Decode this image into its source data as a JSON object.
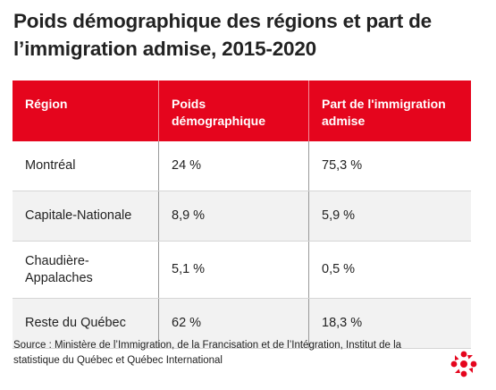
{
  "title": "Poids démographique des régions et part de l’immigration admise, 2015-2020",
  "chart_data": {
    "type": "table",
    "columns": [
      "Région",
      "Poids démographique",
      "Part de l'immigration admise"
    ],
    "rows": [
      [
        "Montréal",
        "24 %",
        "75,3 %"
      ],
      [
        "Capitale-Nationale",
        "8,9 %",
        "5,9 %"
      ],
      [
        "Chaudière-Appalaches",
        "5,1 %",
        "0,5 %"
      ],
      [
        "Reste du Québec",
        "62 %",
        "18,3 %"
      ]
    ]
  },
  "source": "Source : Ministère de l’Immigration, de la Francisation et de l’Intégration, Institut de la statistique du Québec et Québec International",
  "colors": {
    "header": "#e5051d",
    "alt_row": "#f2f2f2",
    "logo": "#e5051d"
  },
  "logo_icon": "radio-canada-gem-icon"
}
